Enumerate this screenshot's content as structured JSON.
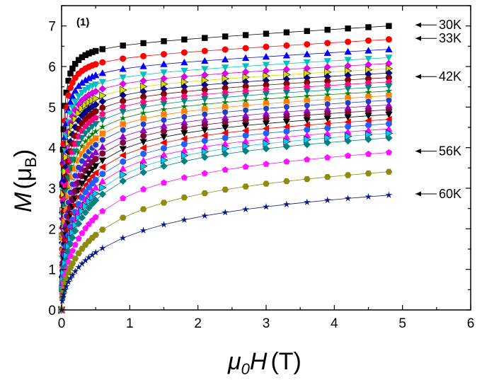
{
  "chart_data": {
    "type": "scatter",
    "panel_label": "(1)",
    "xlabel": {
      "symbol": "μ",
      "subscript": "0",
      "var": "H",
      "unit": "(T)"
    },
    "ylabel": {
      "symbol": "M",
      "open": "(μ",
      "subscript": "B",
      "close": ")"
    },
    "xlim": [
      0,
      6
    ],
    "ylim": [
      0,
      7.5
    ],
    "xticks": [
      "0",
      "1",
      "2",
      "3",
      "4",
      "5",
      "6"
    ],
    "yticks": [
      "0",
      "1",
      "2",
      "3",
      "4",
      "5",
      "6",
      "7"
    ],
    "marker_line_style": "thin connecting lines through markers",
    "series": [
      {
        "msat": 7.05,
        "h0": 0.035,
        "color": "#000000",
        "marker": "square"
      },
      {
        "msat": 6.72,
        "h0": 0.04,
        "color": "#ff0000",
        "marker": "circle"
      },
      {
        "msat": 6.48,
        "h0": 0.05,
        "color": "#0000ff",
        "marker": "triangle-up"
      },
      {
        "msat": 6.28,
        "h0": 0.06,
        "color": "#00c0c0",
        "marker": "triangle-down"
      },
      {
        "msat": 6.14,
        "h0": 0.07,
        "color": "#e000e0",
        "marker": "diamond"
      },
      {
        "msat": 6.02,
        "h0": 0.085,
        "color": "#d8d800",
        "marker": "triangle-right"
      },
      {
        "msat": 5.92,
        "h0": 0.1,
        "color": "#000080",
        "marker": "diamond"
      },
      {
        "msat": 5.82,
        "h0": 0.12,
        "color": "#800000",
        "marker": "circle"
      },
      {
        "msat": 5.72,
        "h0": 0.14,
        "color": "#ff0080",
        "marker": "pentagon"
      },
      {
        "msat": 5.62,
        "h0": 0.16,
        "color": "#008080",
        "marker": "triangle-down"
      },
      {
        "msat": 5.52,
        "h0": 0.19,
        "color": "#008000",
        "marker": "star"
      },
      {
        "msat": 5.42,
        "h0": 0.22,
        "color": "#ff8000",
        "marker": "square"
      },
      {
        "msat": 5.32,
        "h0": 0.25,
        "color": "#2040c0",
        "marker": "sphere"
      },
      {
        "msat": 5.22,
        "h0": 0.29,
        "color": "#9000d0",
        "marker": "triangle-up"
      },
      {
        "msat": 5.12,
        "h0": 0.33,
        "color": "#800040",
        "marker": "circle"
      },
      {
        "msat": 5.02,
        "h0": 0.38,
        "color": "#000000",
        "marker": "triangle-down"
      },
      {
        "msat": 4.92,
        "h0": 0.43,
        "color": "#ee0000",
        "marker": "triangle-left"
      },
      {
        "msat": 4.84,
        "h0": 0.5,
        "color": "#2060ff",
        "marker": "circle"
      },
      {
        "msat": 4.74,
        "h0": 0.58,
        "color": "#ff00ff",
        "marker": "triangle-up"
      },
      {
        "msat": 4.66,
        "h0": 0.66,
        "color": "#00c8ff",
        "marker": "triangle-right"
      },
      {
        "msat": 4.58,
        "h0": 0.76,
        "color": "#008080",
        "marker": "diamond"
      },
      {
        "msat": 4.3,
        "h0": 1.05,
        "color": "#ff10ff",
        "marker": "pentagon"
      },
      {
        "msat": 3.9,
        "h0": 1.45,
        "color": "#8c8c10",
        "marker": "hexagon"
      },
      {
        "msat": 3.38,
        "h0": 2.0,
        "color": "#0a1a80",
        "marker": "star"
      }
    ],
    "temperature_labels": [
      {
        "text": "30K",
        "series_index": 0
      },
      {
        "text": "33K",
        "series_index": 1
      },
      {
        "text": "42K",
        "series_index": 7
      },
      {
        "text": "56K",
        "series_index": 21
      },
      {
        "text": "60K",
        "series_index": 23
      }
    ]
  }
}
